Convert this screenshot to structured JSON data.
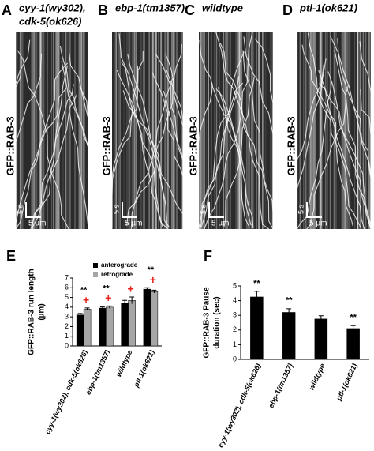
{
  "panels": [
    {
      "letter": "A",
      "title": [
        "cyy-1(wy302),",
        "cdk-5(ok626)"
      ],
      "ylabel": "GFP::RAB-3",
      "time_scale": "5 s",
      "length_scale": "5 µm"
    },
    {
      "letter": "B",
      "title": [
        "ebp-1(tm1357)"
      ],
      "ylabel": "GFP::RAB-3",
      "time_scale": "5 s",
      "length_scale": "5 µm"
    },
    {
      "letter": "C",
      "title": [
        "wildtype"
      ],
      "ylabel": "GFP::RAB-3",
      "time_scale": "5 s",
      "length_scale": "5 µm"
    },
    {
      "letter": "D",
      "title": [
        "ptl-1(ok621)"
      ],
      "ylabel": "GFP::RAB-3",
      "time_scale": "5 s",
      "length_scale": "5 µm"
    }
  ],
  "chart_data": [
    {
      "type": "bar",
      "panel": "E",
      "y_label": [
        "GFP::RAB-3 run length",
        "(µm)"
      ],
      "categories": [
        "cyy-1(wy302), cdk-5(ok626)",
        "ebp-1(tm1357)",
        "wildtype",
        "ptl-1(ok621)"
      ],
      "series": [
        {
          "name": "anterograde",
          "color": "#000000",
          "values": [
            3.2,
            3.9,
            4.4,
            5.85
          ],
          "errors": [
            0.15,
            0.12,
            0.3,
            0.15
          ]
        },
        {
          "name": "retrograde",
          "color": "#a6a6a6",
          "values": [
            3.8,
            4.0,
            4.7,
            5.6
          ],
          "errors": [
            0.12,
            0.12,
            0.35,
            0.15
          ]
        }
      ],
      "significance": [
        "**",
        "**",
        null,
        "**"
      ],
      "significance_alt": [
        "+",
        "+",
        "+",
        "+"
      ],
      "significance_alt_color": "#e8211b",
      "ylim": [
        0,
        7
      ],
      "yticks": [
        0,
        1,
        2,
        3,
        4,
        5,
        6,
        7
      ]
    },
    {
      "type": "bar",
      "panel": "F",
      "y_label": [
        "GFP::RAB-3 Pause",
        "duration (sec)"
      ],
      "categories": [
        "cyy-1(wy302), cdk-5(ok626)",
        "ebp-1(tm1357)",
        "wildtype",
        "ptl-1(ok621)"
      ],
      "series": [
        {
          "color": "#000000",
          "values": [
            4.25,
            3.2,
            2.75,
            2.1
          ],
          "errors": [
            0.38,
            0.25,
            0.22,
            0.2
          ]
        }
      ],
      "significance": [
        "**",
        "**",
        null,
        "**"
      ],
      "ylim": [
        0,
        5
      ],
      "yticks": [
        0,
        1,
        2,
        3,
        4,
        5
      ]
    }
  ]
}
